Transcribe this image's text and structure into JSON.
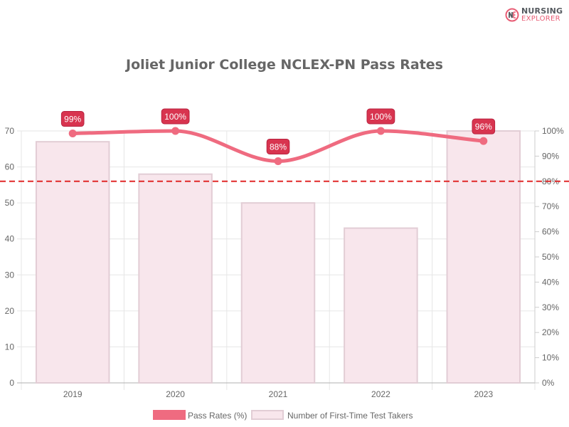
{
  "logo": {
    "line1": "NURSING",
    "line2": "EXPLORER",
    "mark_text": "NE",
    "colors": {
      "accent": "#e85d75",
      "dark": "#555a5f"
    }
  },
  "chart_data": {
    "type": "bar+line",
    "title": "Joliet Junior College NCLEX-PN Pass Rates",
    "categories": [
      "2019",
      "2020",
      "2021",
      "2022",
      "2023"
    ],
    "bar_series": {
      "name": "Number of First-Time Test Takers",
      "values": [
        67,
        58,
        50,
        43,
        70
      ],
      "axis": "left",
      "ylim": [
        0,
        70
      ],
      "ticks": [
        "0",
        "10",
        "20",
        "30",
        "40",
        "50",
        "60",
        "70"
      ],
      "fill": "#f8e6ec",
      "stroke": "#e2cdd5"
    },
    "line_series": {
      "name": "Pass Rates (%)",
      "values": [
        99,
        100,
        88,
        100,
        96
      ],
      "data_labels": [
        "99%",
        "100%",
        "88%",
        "100%",
        "96%"
      ],
      "axis": "right",
      "ylim": [
        0,
        100
      ],
      "ticks": [
        "0%",
        "10%",
        "20%",
        "30%",
        "40%",
        "50%",
        "60%",
        "70%",
        "80%",
        "90%",
        "100%"
      ],
      "color": "#ef6b80",
      "label_bg": "#d8344f"
    },
    "reference_line": {
      "value": 80,
      "axis": "right",
      "style": "dashed",
      "color": "#e02828"
    },
    "grid": true,
    "legend": {
      "position": "bottom",
      "items": [
        "Pass Rates (%)",
        "Number of First-Time Test Takers"
      ]
    }
  }
}
